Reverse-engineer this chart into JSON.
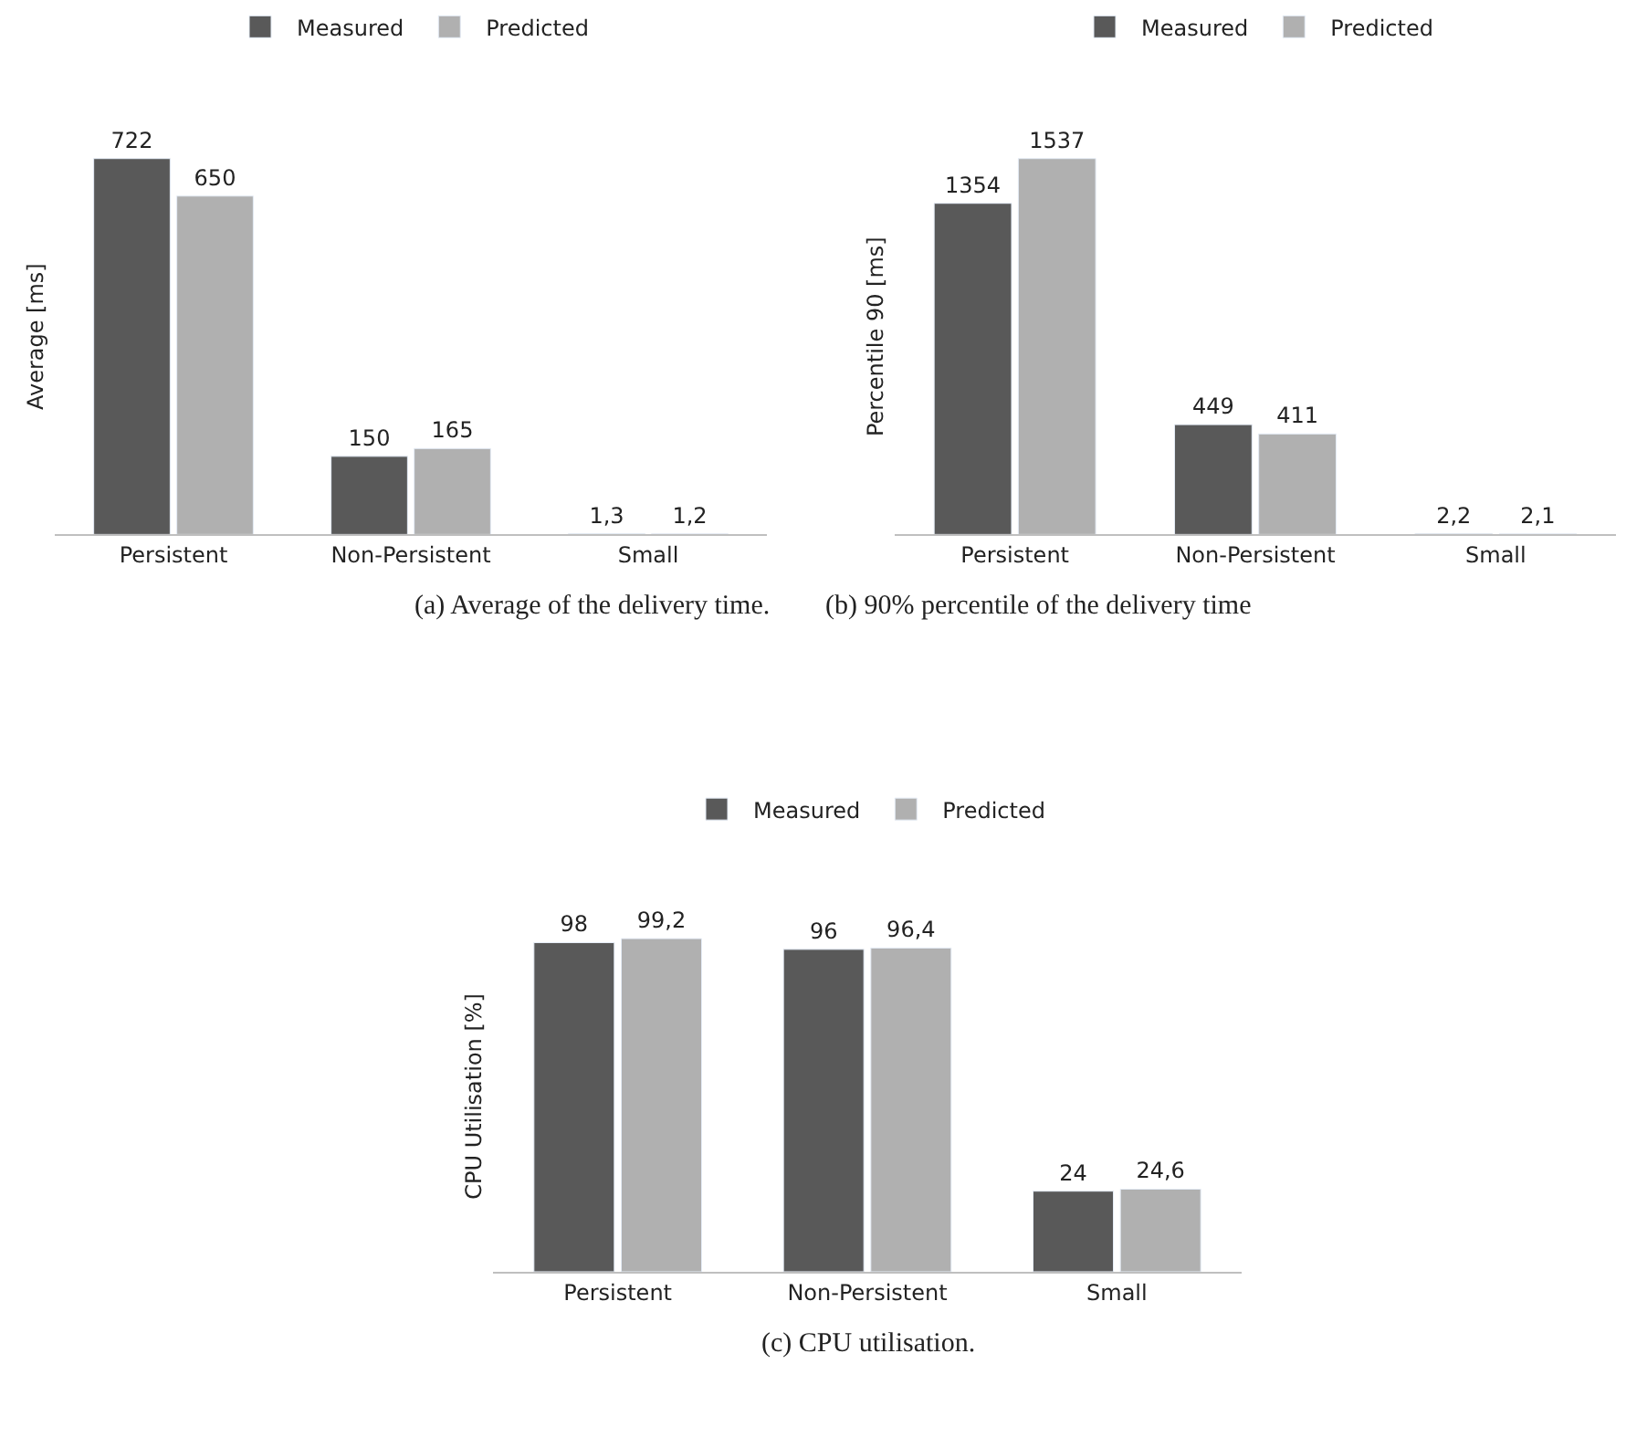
{
  "chart_data": [
    {
      "type": "bar",
      "ylabel": "Average [ms]",
      "categories": [
        "Persistent",
        "Non-Persistent",
        "Small"
      ],
      "legend": "top",
      "series": [
        {
          "name": "Measured",
          "color": "#595959",
          "values": [
            722,
            150,
            1.3
          ],
          "value_labels": [
            "722",
            "150",
            "1,3"
          ]
        },
        {
          "name": "Predicted",
          "color": "#b0b0b0",
          "values": [
            650,
            165,
            1.2
          ],
          "value_labels": [
            "650",
            "165",
            "1,2"
          ]
        }
      ],
      "annotations": [
        "(a) Average of the delivery time."
      ]
    },
    {
      "type": "bar",
      "ylabel": "Percentile 90 [ms]",
      "categories": [
        "Persistent",
        "Non-Persistent",
        "Small"
      ],
      "legend": "top",
      "series": [
        {
          "name": "Measured",
          "color": "#595959",
          "values": [
            1354,
            449,
            2.2
          ],
          "value_labels": [
            "1354",
            "449",
            "2,2"
          ]
        },
        {
          "name": "Predicted",
          "color": "#b0b0b0",
          "values": [
            1537,
            411,
            2.1
          ],
          "value_labels": [
            "1537",
            "411",
            "2,1"
          ]
        }
      ],
      "annotations": [
        "(b) 90% percentile of the delivery time"
      ]
    },
    {
      "type": "bar",
      "ylabel": "CPU Utilisation [%]",
      "categories": [
        "Persistent",
        "Non-Persistent",
        "Small"
      ],
      "legend": "top",
      "series": [
        {
          "name": "Measured",
          "color": "#595959",
          "values": [
            98,
            96,
            24
          ],
          "value_labels": [
            "98",
            "96",
            "24"
          ]
        },
        {
          "name": "Predicted",
          "color": "#b0b0b0",
          "values": [
            99.2,
            96.4,
            24.6
          ],
          "value_labels": [
            "99,2",
            "96,4",
            "24,6"
          ]
        }
      ],
      "annotations": [
        "(c) CPU utilisation."
      ]
    }
  ]
}
